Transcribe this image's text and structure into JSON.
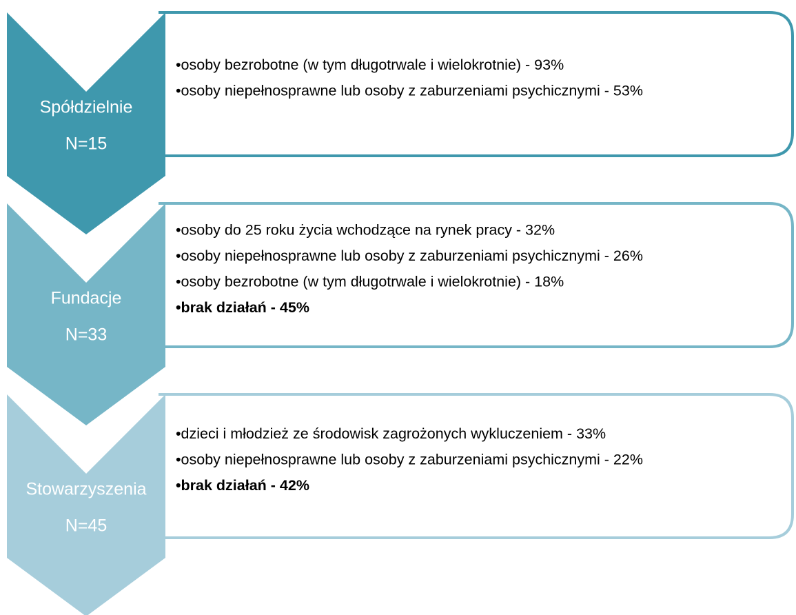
{
  "groups": [
    {
      "label": "Spółdzielnie",
      "n": "N=15",
      "color": "#3f98ad",
      "items": [
        {
          "text": "•osoby bezrobotne (w tym długotrwale i wielokrotnie) - 93%",
          "bold": false
        },
        {
          "text": "•osoby niepełnosprawne lub osoby z zaburzeniami psychicznymi - 53%",
          "bold": false
        }
      ]
    },
    {
      "label": "Fundacje",
      "n": "N=33",
      "color": "#76b6c7",
      "items": [
        {
          "text": "•osoby do 25 roku życia wchodzące na rynek pracy - 32%",
          "bold": false
        },
        {
          "text": "•osoby niepełnosprawne lub osoby z zaburzeniami psychicznymi - 26%",
          "bold": false
        },
        {
          "text": "•osoby bezrobotne (w tym długotrwale i wielokrotnie) - 18%",
          "bold": false
        },
        {
          "text": "•brak działań - 45%",
          "bold": true
        }
      ]
    },
    {
      "label": "Stowarzyszenia",
      "n": "N=45",
      "color": "#a6cddb",
      "items": [
        {
          "text": "•dzieci i młodzież ze środowisk zagrożonych wykluczeniem - 33%",
          "bold": false
        },
        {
          "text": "•osoby niepełnosprawne lub osoby z zaburzeniami psychicznymi - 22%",
          "bold": false
        },
        {
          "text": "•brak działań - 42%",
          "bold": true
        }
      ]
    }
  ]
}
